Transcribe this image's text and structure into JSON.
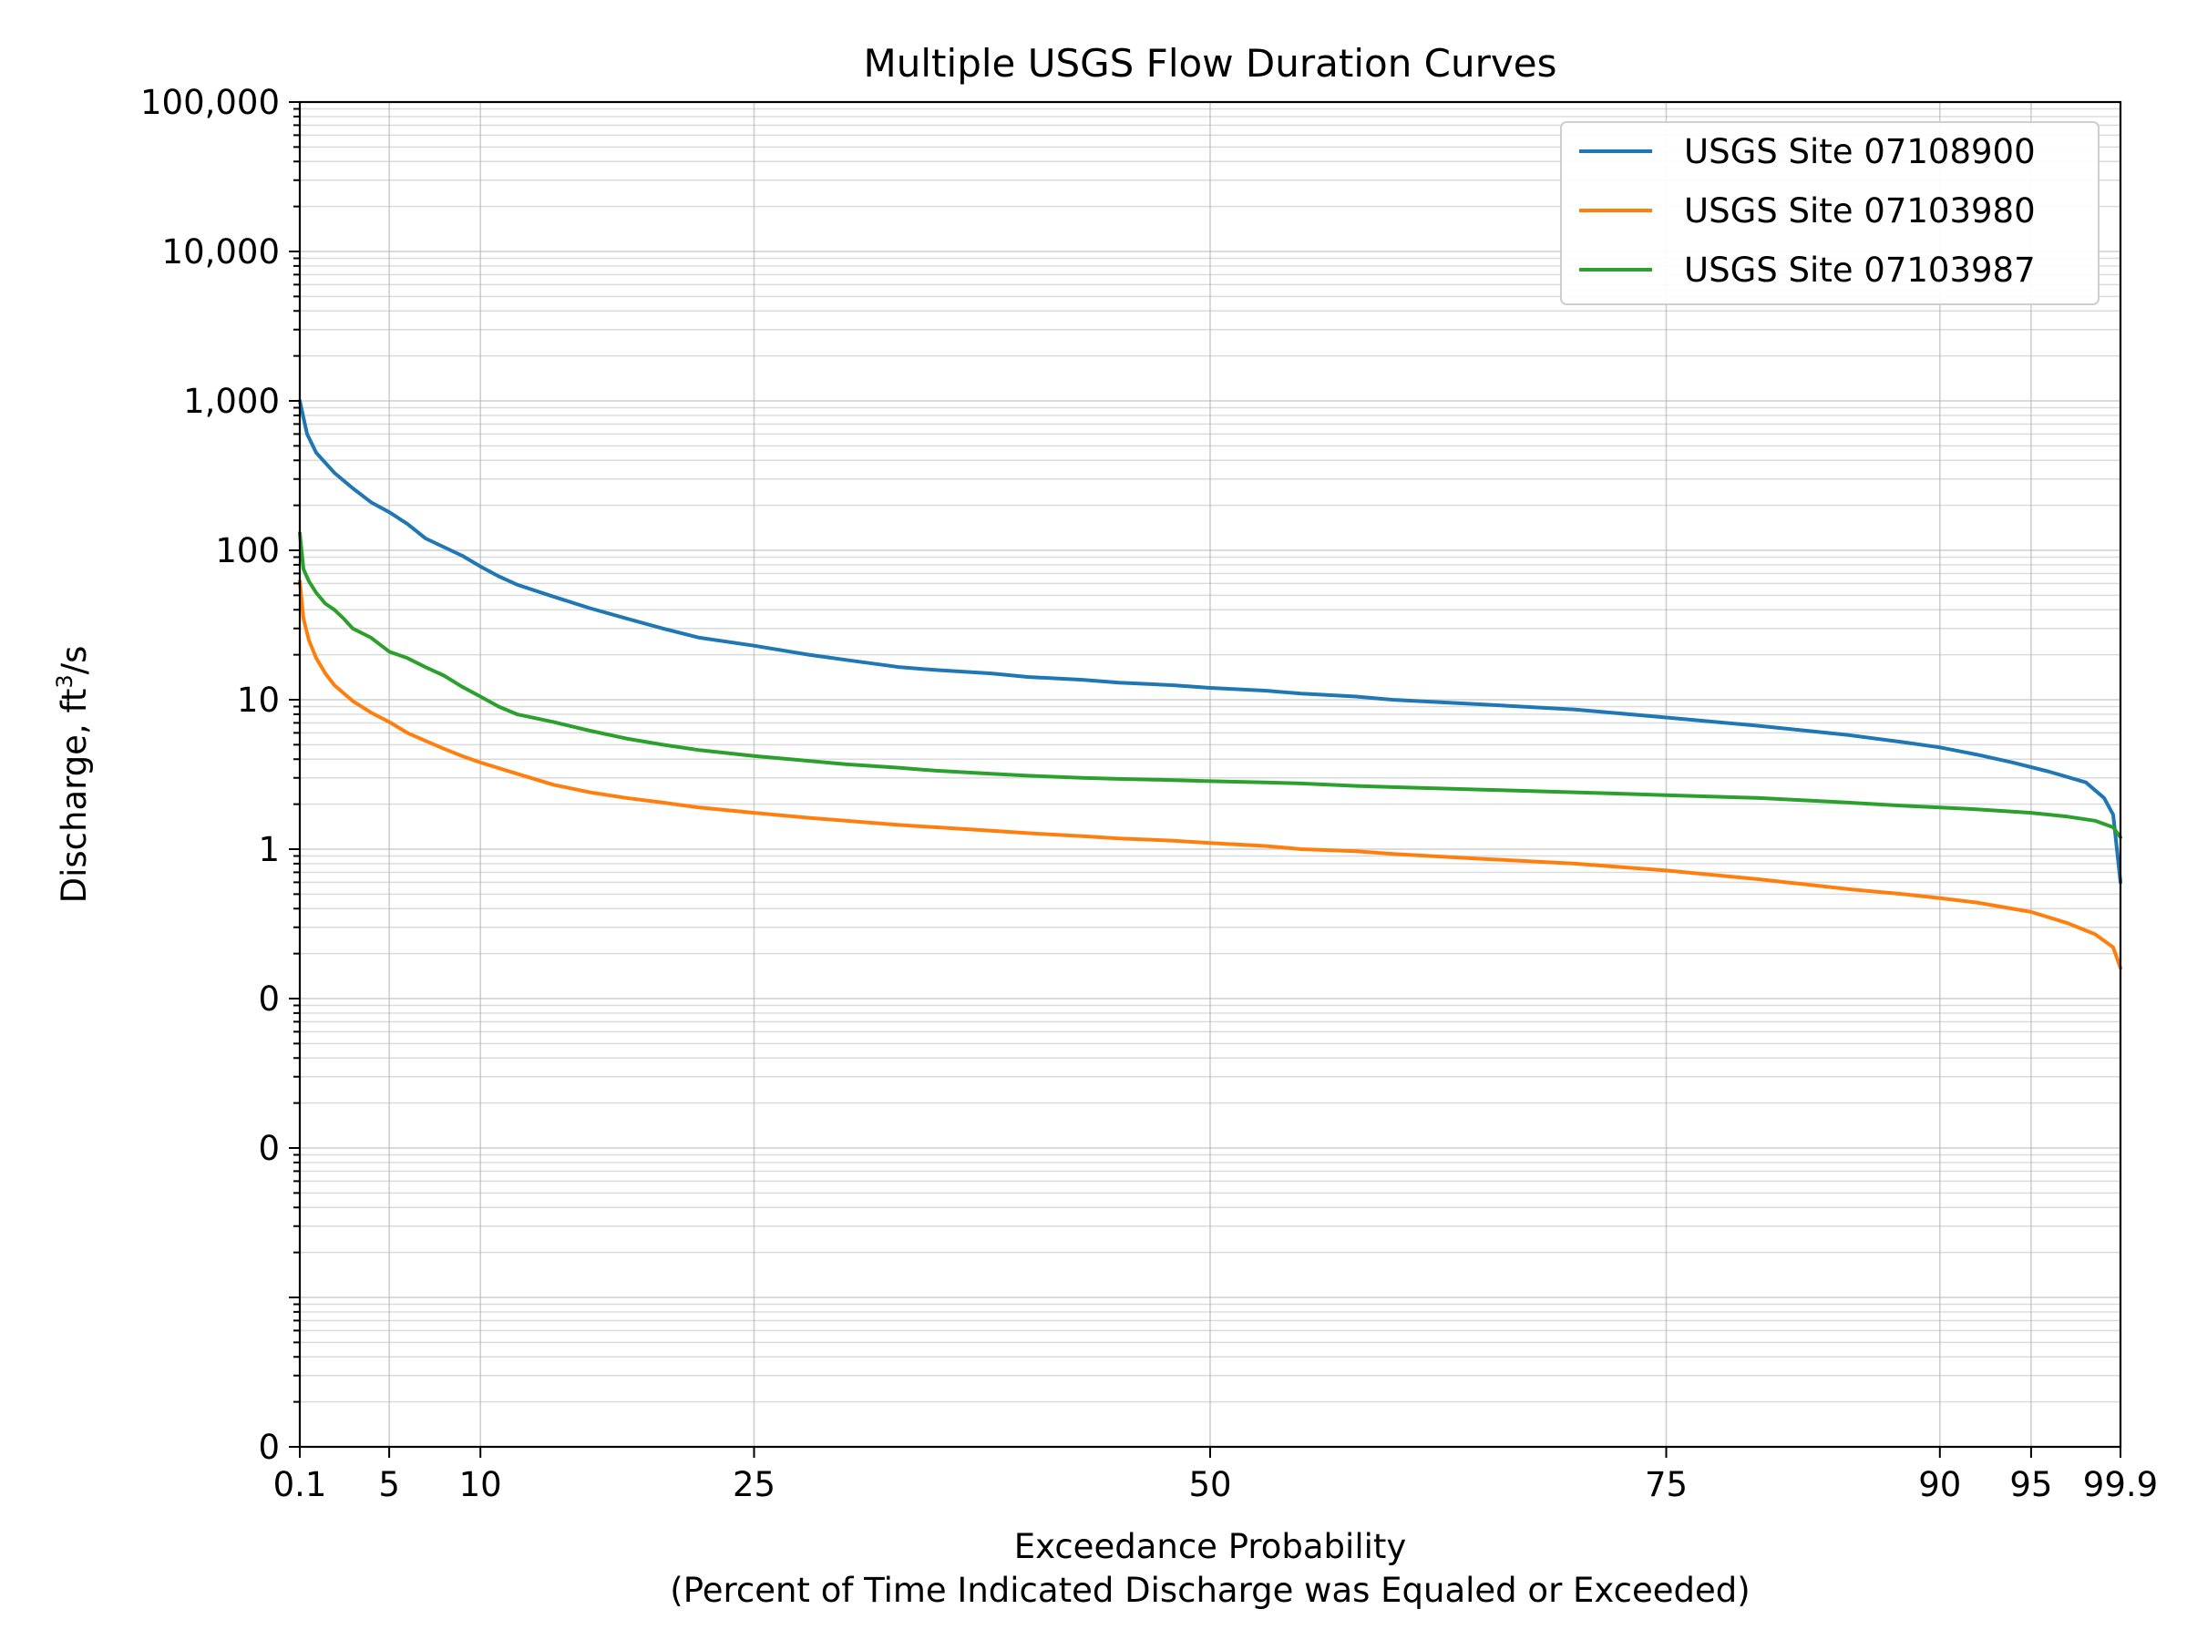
{
  "chart_data": {
    "type": "line",
    "title": "Multiple USGS Flow Duration Curves",
    "xlabel": "Exceedance Probability",
    "xlabel_sub": "(Percent of Time Indicated Discharge was Equaled or Exceeded)",
    "ylabel_prefix": "Discharge, ft",
    "ylabel_sup": "3",
    "ylabel_suffix": "/s",
    "x_scale": "linear",
    "y_scale": "log",
    "xlim": [
      0.1,
      99.9
    ],
    "ylim": [
      0.0001,
      100000
    ],
    "x_ticks": [
      {
        "value": 0.1,
        "label": "0.1"
      },
      {
        "value": 5,
        "label": "5"
      },
      {
        "value": 10,
        "label": "10"
      },
      {
        "value": 25,
        "label": "25"
      },
      {
        "value": 50,
        "label": "50"
      },
      {
        "value": 75,
        "label": "75"
      },
      {
        "value": 90,
        "label": "90"
      },
      {
        "value": 95,
        "label": "95"
      },
      {
        "value": 99.9,
        "label": "99.9"
      }
    ],
    "y_ticks": [
      {
        "value": 100000,
        "label": "100,000"
      },
      {
        "value": 10000,
        "label": "10,000"
      },
      {
        "value": 1000,
        "label": "1,000"
      },
      {
        "value": 100,
        "label": "100"
      },
      {
        "value": 10,
        "label": "10"
      },
      {
        "value": 1,
        "label": "1"
      },
      {
        "value": 0.1,
        "label": "0"
      },
      {
        "value": 0.01,
        "label": "0"
      },
      {
        "value": 0.0001,
        "label": "0"
      }
    ],
    "grid": true,
    "legend_position": "top-right",
    "series": [
      {
        "name": "USGS Site 07108900",
        "color": "#1f77b4",
        "x": [
          0.1,
          0.5,
          1,
          2,
          3,
          4,
          5,
          6,
          7,
          8,
          9,
          10,
          11,
          12,
          14,
          16,
          18,
          20,
          22,
          25,
          28,
          30,
          33,
          35,
          38,
          40,
          43,
          45,
          48,
          50,
          53,
          55,
          58,
          60,
          65,
          70,
          75,
          80,
          85,
          88,
          90,
          92,
          94,
          96,
          98,
          99,
          99.5,
          99.9
        ],
        "values": [
          1000,
          600,
          450,
          330,
          260,
          210,
          180,
          150,
          120,
          105,
          92,
          78,
          67,
          59,
          49,
          41,
          35,
          30,
          26,
          23,
          20,
          18.5,
          16.5,
          15.8,
          15,
          14.2,
          13.6,
          13,
          12.5,
          12,
          11.5,
          11,
          10.5,
          10,
          9.3,
          8.6,
          7.6,
          6.7,
          5.8,
          5.2,
          4.8,
          4.3,
          3.8,
          3.3,
          2.8,
          2.2,
          1.7,
          0.6
        ]
      },
      {
        "name": "USGS Site 07103980",
        "color": "#ff7f0e",
        "x": [
          0.1,
          0.3,
          0.6,
          1,
          1.5,
          2,
          3,
          4,
          5,
          6,
          7,
          8,
          9,
          10,
          12,
          14,
          16,
          18,
          20,
          22,
          25,
          28,
          30,
          33,
          35,
          38,
          40,
          43,
          45,
          48,
          50,
          53,
          55,
          58,
          60,
          65,
          70,
          75,
          80,
          85,
          88,
          90,
          92,
          95,
          97,
          98.5,
          99.5,
          99.9
        ],
        "values": [
          62,
          35,
          25,
          19,
          15,
          12.5,
          9.8,
          8.2,
          7.1,
          6,
          5.3,
          4.7,
          4.2,
          3.8,
          3.2,
          2.7,
          2.4,
          2.2,
          2.05,
          1.9,
          1.75,
          1.62,
          1.55,
          1.45,
          1.4,
          1.33,
          1.28,
          1.22,
          1.18,
          1.14,
          1.1,
          1.05,
          1.0,
          0.97,
          0.93,
          0.86,
          0.8,
          0.72,
          0.63,
          0.54,
          0.5,
          0.47,
          0.44,
          0.38,
          0.32,
          0.27,
          0.22,
          0.16
        ]
      },
      {
        "name": "USGS Site 07103987",
        "color": "#2ca02c",
        "x": [
          0.1,
          0.3,
          0.6,
          1,
          1.5,
          2,
          2.5,
          3,
          4,
          5,
          6,
          7,
          8,
          9,
          10,
          11,
          12,
          14,
          16,
          18,
          20,
          22,
          25,
          28,
          30,
          33,
          35,
          38,
          40,
          43,
          45,
          48,
          50,
          53,
          55,
          58,
          60,
          65,
          70,
          75,
          80,
          85,
          88,
          90,
          92,
          95,
          97,
          98.5,
          99.5,
          99.9
        ],
        "values": [
          130,
          75,
          62,
          52,
          44,
          40,
          35,
          30,
          26,
          21,
          19,
          16.5,
          14.5,
          12.2,
          10.5,
          9,
          8,
          7.1,
          6.2,
          5.5,
          5.0,
          4.6,
          4.2,
          3.9,
          3.7,
          3.5,
          3.35,
          3.2,
          3.1,
          3.0,
          2.95,
          2.9,
          2.85,
          2.8,
          2.75,
          2.65,
          2.6,
          2.5,
          2.4,
          2.3,
          2.2,
          2.05,
          1.95,
          1.9,
          1.85,
          1.75,
          1.65,
          1.55,
          1.4,
          1.2
        ]
      }
    ]
  }
}
